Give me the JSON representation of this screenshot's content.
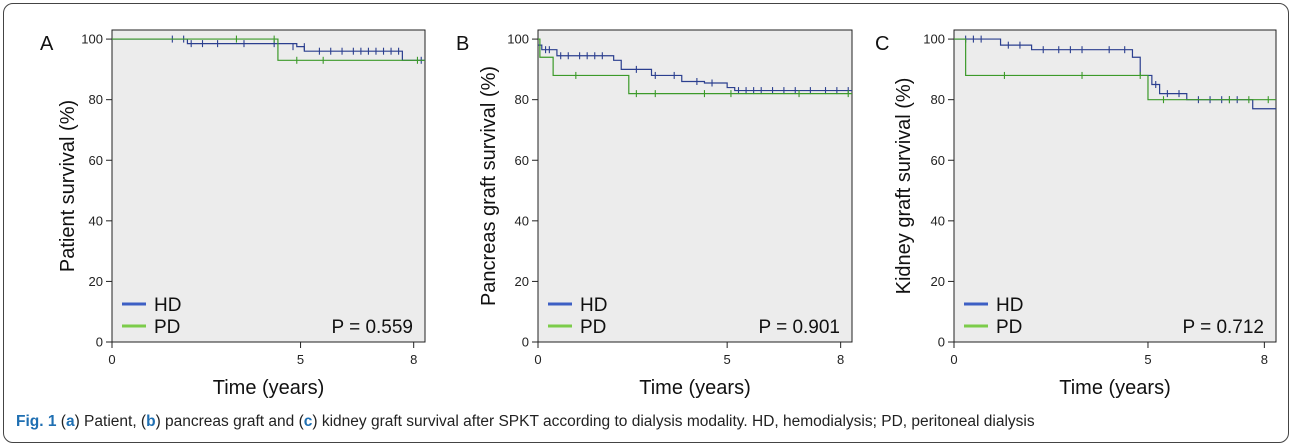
{
  "colors": {
    "hd": "#2b3f8f",
    "pd": "#3c9a2a",
    "hd_legend": "#3d5fc4",
    "pd_legend": "#7ccc4a",
    "plot_bg": "#ececec"
  },
  "caption": {
    "fig_label": "Fig. 1",
    "parts": [
      "(",
      "a",
      ") Patient, (",
      "b",
      ") pancreas graft and (",
      "c",
      ") kidney graft survival after SPKT according to dialysis modality. HD, hemodialysis; PD, peritoneal dialysis"
    ]
  },
  "chart_data": [
    {
      "type": "line",
      "panel_label": "A",
      "ylabel": "Patient survival (%)",
      "xlabel": "Time (years)",
      "xlim": [
        0,
        8.3
      ],
      "ylim": [
        0,
        103
      ],
      "x_ticks": [
        0,
        5,
        8
      ],
      "y_ticks": [
        0,
        20,
        40,
        60,
        80,
        100
      ],
      "grid": false,
      "legend_position": "bottom-left",
      "p_value": "P = 0.559",
      "series": [
        {
          "name": "HD",
          "steps": [
            [
              0,
              100
            ],
            [
              2.0,
              98.5
            ],
            [
              4.9,
              97.5
            ],
            [
              5.1,
              96
            ],
            [
              7.7,
              93
            ],
            [
              8.3,
              93
            ]
          ],
          "censors": [
            [
              1.6,
              100
            ],
            [
              1.9,
              100
            ],
            [
              2.1,
              98.5
            ],
            [
              2.4,
              98.5
            ],
            [
              2.8,
              98.5
            ],
            [
              3.5,
              98.5
            ],
            [
              4.3,
              98.5
            ],
            [
              4.8,
              97.5
            ],
            [
              5.1,
              97.5
            ],
            [
              5.5,
              96
            ],
            [
              5.8,
              96
            ],
            [
              6.1,
              96
            ],
            [
              6.4,
              96
            ],
            [
              6.6,
              96
            ],
            [
              6.8,
              96
            ],
            [
              7.0,
              96
            ],
            [
              7.2,
              96
            ],
            [
              7.4,
              96
            ],
            [
              7.6,
              96
            ],
            [
              8.2,
              93
            ]
          ]
        },
        {
          "name": "PD",
          "steps": [
            [
              0,
              100
            ],
            [
              4.4,
              93
            ],
            [
              8.3,
              93
            ]
          ],
          "censors": [
            [
              3.3,
              100
            ],
            [
              4.3,
              100
            ],
            [
              4.9,
              93
            ],
            [
              5.6,
              93
            ],
            [
              8.1,
              93
            ]
          ]
        }
      ]
    },
    {
      "type": "line",
      "panel_label": "B",
      "ylabel": "Pancreas graft survival (%)",
      "xlabel": "Time (years)",
      "xlim": [
        0,
        8.3
      ],
      "ylim": [
        0,
        103
      ],
      "x_ticks": [
        0,
        5,
        8
      ],
      "y_ticks": [
        0,
        20,
        40,
        60,
        80,
        100
      ],
      "grid": false,
      "legend_position": "bottom-left",
      "p_value": "P = 0.901",
      "series": [
        {
          "name": "HD",
          "steps": [
            [
              0,
              98
            ],
            [
              0.1,
              96.5
            ],
            [
              0.5,
              94.5
            ],
            [
              2.0,
              93
            ],
            [
              2.2,
              90
            ],
            [
              3.0,
              88
            ],
            [
              3.8,
              86
            ],
            [
              4.4,
              85.5
            ],
            [
              5.0,
              84
            ],
            [
              5.2,
              83
            ],
            [
              8.3,
              83
            ]
          ],
          "censors": [
            [
              0.2,
              96.5
            ],
            [
              0.3,
              96.5
            ],
            [
              0.6,
              94.5
            ],
            [
              0.8,
              94.5
            ],
            [
              1.1,
              94.5
            ],
            [
              1.3,
              94.5
            ],
            [
              1.5,
              94.5
            ],
            [
              1.7,
              94.5
            ],
            [
              2.6,
              90
            ],
            [
              3.1,
              88
            ],
            [
              3.6,
              88
            ],
            [
              4.2,
              86
            ],
            [
              4.6,
              85.5
            ],
            [
              5.3,
              83
            ],
            [
              5.5,
              83
            ],
            [
              5.7,
              83
            ],
            [
              5.9,
              83
            ],
            [
              6.2,
              83
            ],
            [
              6.5,
              83
            ],
            [
              6.8,
              83
            ],
            [
              7.2,
              83
            ],
            [
              7.6,
              83
            ],
            [
              7.9,
              83
            ],
            [
              8.2,
              83
            ]
          ]
        },
        {
          "name": "PD",
          "steps": [
            [
              0,
              100
            ],
            [
              0.05,
              94
            ],
            [
              0.4,
              88
            ],
            [
              2.4,
              82
            ],
            [
              8.3,
              82
            ]
          ],
          "censors": [
            [
              1.0,
              88
            ],
            [
              2.6,
              82
            ],
            [
              3.1,
              82
            ],
            [
              4.4,
              82
            ],
            [
              5.1,
              82
            ],
            [
              6.9,
              82
            ],
            [
              8.2,
              82
            ]
          ]
        }
      ]
    },
    {
      "type": "line",
      "panel_label": "C",
      "ylabel": "Kidney graft survival (%)",
      "xlabel": "Time (years)",
      "xlim": [
        0,
        8.3
      ],
      "ylim": [
        0,
        103
      ],
      "x_ticks": [
        0,
        5,
        8
      ],
      "y_ticks": [
        0,
        20,
        40,
        60,
        80,
        100
      ],
      "grid": false,
      "legend_position": "bottom-left",
      "p_value": "P = 0.712",
      "series": [
        {
          "name": "HD",
          "steps": [
            [
              0,
              100
            ],
            [
              1.2,
              98
            ],
            [
              2.0,
              96.5
            ],
            [
              4.6,
              94
            ],
            [
              4.8,
              88
            ],
            [
              5.1,
              85
            ],
            [
              5.3,
              82
            ],
            [
              6.0,
              80
            ],
            [
              7.7,
              77
            ],
            [
              8.3,
              77
            ]
          ],
          "censors": [
            [
              0.3,
              100
            ],
            [
              0.5,
              100
            ],
            [
              0.7,
              100
            ],
            [
              1.4,
              98
            ],
            [
              1.7,
              98
            ],
            [
              2.3,
              96.5
            ],
            [
              2.7,
              96.5
            ],
            [
              3.0,
              96.5
            ],
            [
              3.3,
              96.5
            ],
            [
              4.0,
              96.5
            ],
            [
              4.4,
              96.5
            ],
            [
              5.2,
              85
            ],
            [
              5.5,
              82
            ],
            [
              5.8,
              82
            ],
            [
              6.3,
              80
            ],
            [
              6.6,
              80
            ],
            [
              6.9,
              80
            ],
            [
              7.1,
              80
            ],
            [
              7.3,
              80
            ]
          ]
        },
        {
          "name": "PD",
          "steps": [
            [
              0,
              100
            ],
            [
              0.3,
              88
            ],
            [
              5.0,
              80
            ],
            [
              8.3,
              80
            ]
          ],
          "censors": [
            [
              1.3,
              88
            ],
            [
              3.3,
              88
            ],
            [
              4.8,
              88
            ],
            [
              5.4,
              80
            ],
            [
              7.1,
              80
            ],
            [
              7.6,
              80
            ],
            [
              8.1,
              80
            ]
          ]
        }
      ]
    }
  ]
}
